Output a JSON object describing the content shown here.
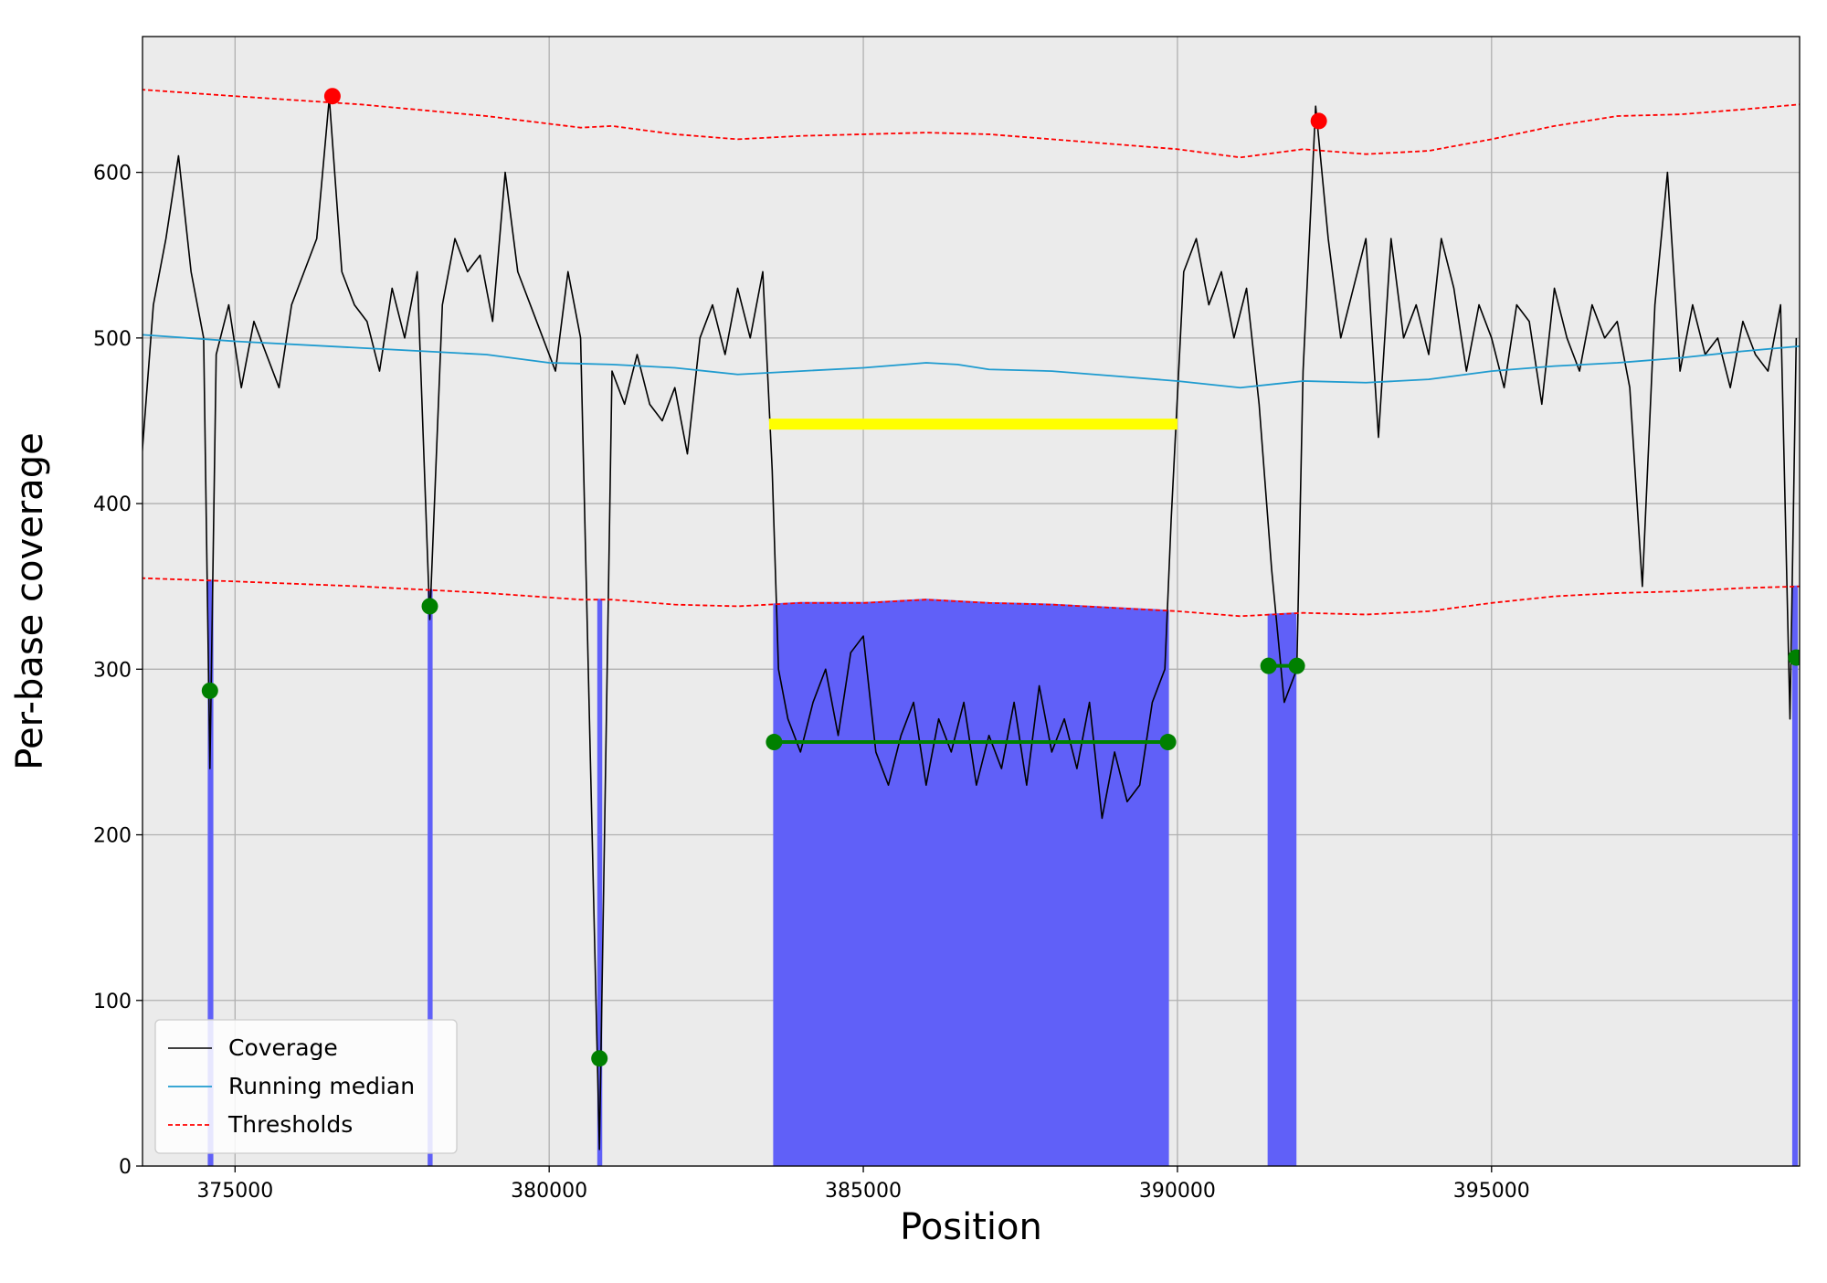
{
  "chart_data": {
    "type": "line",
    "xlabel": "Position",
    "ylabel": "Per-base coverage",
    "xlim": [
      373527,
      399903
    ],
    "ylim": [
      0,
      682
    ],
    "xticks": [
      375000,
      380000,
      385000,
      390000,
      395000
    ],
    "yticks": [
      0,
      100,
      200,
      300,
      400,
      500,
      600
    ],
    "grid": true,
    "legend": "lower left",
    "regions_color": "#6060f8",
    "regions": [
      [
        374580,
        374640
      ],
      [
        378080,
        378130
      ],
      [
        380780,
        380830
      ],
      [
        383580,
        389850
      ],
      [
        391450,
        391880
      ],
      [
        399800,
        399860
      ]
    ],
    "series": [
      {
        "name": "Coverage",
        "color": "#000000",
        "style": "line",
        "width": 1.6,
        "x": [
          373500,
          373700,
          373900,
          374100,
          374300,
          374500,
          374600,
          374700,
          374900,
          375100,
          375300,
          375500,
          375700,
          375900,
          376100,
          376300,
          376500,
          376700,
          376900,
          377100,
          377300,
          377500,
          377700,
          377900,
          378100,
          378300,
          378500,
          378700,
          378900,
          379100,
          379300,
          379500,
          379700,
          379900,
          380100,
          380300,
          380500,
          380800,
          381000,
          381200,
          381400,
          381600,
          381800,
          382000,
          382200,
          382400,
          382600,
          382800,
          383000,
          383200,
          383400,
          383550,
          383650,
          383800,
          384000,
          384200,
          384400,
          384600,
          384800,
          385000,
          385200,
          385400,
          385600,
          385800,
          386000,
          386200,
          386400,
          386600,
          386800,
          387000,
          387200,
          387400,
          387600,
          387800,
          388000,
          388200,
          388400,
          388600,
          388800,
          389000,
          389200,
          389400,
          389600,
          389800,
          389900,
          390100,
          390300,
          390500,
          390700,
          390900,
          391100,
          391300,
          391500,
          391700,
          391900,
          392000,
          392200,
          392400,
          392600,
          392800,
          393000,
          393200,
          393400,
          393600,
          393800,
          394000,
          394200,
          394400,
          394600,
          394800,
          395000,
          395200,
          395400,
          395600,
          395800,
          396000,
          396200,
          396400,
          396600,
          396800,
          397000,
          397200,
          397400,
          397600,
          397800,
          398000,
          398200,
          398400,
          398600,
          398800,
          399000,
          399200,
          399400,
          399600,
          399750,
          399850
        ],
        "values": [
          420,
          520,
          560,
          610,
          540,
          500,
          240,
          490,
          520,
          470,
          510,
          490,
          470,
          520,
          540,
          560,
          645,
          540,
          520,
          510,
          480,
          530,
          500,
          540,
          330,
          520,
          560,
          540,
          550,
          510,
          600,
          540,
          520,
          500,
          480,
          540,
          500,
          10,
          480,
          460,
          490,
          460,
          450,
          470,
          430,
          500,
          520,
          490,
          530,
          500,
          540,
          420,
          300,
          270,
          250,
          280,
          300,
          260,
          310,
          320,
          250,
          230,
          260,
          280,
          230,
          270,
          250,
          280,
          230,
          260,
          240,
          280,
          230,
          290,
          250,
          270,
          240,
          280,
          210,
          250,
          220,
          230,
          280,
          300,
          390,
          540,
          560,
          520,
          540,
          500,
          530,
          460,
          360,
          280,
          300,
          480,
          640,
          560,
          500,
          530,
          560,
          440,
          560,
          500,
          520,
          490,
          560,
          530,
          480,
          520,
          500,
          470,
          520,
          510,
          460,
          530,
          500,
          480,
          520,
          500,
          510,
          470,
          350,
          520,
          600,
          480,
          520,
          490,
          500,
          470,
          510,
          490,
          480,
          520,
          270,
          500
        ]
      },
      {
        "name": "Running median",
        "color": "#1f9bcf",
        "style": "line",
        "width": 1.8,
        "x": [
          373500,
          375000,
          377000,
          379000,
          380000,
          381000,
          382000,
          383000,
          384000,
          385000,
          386000,
          386500,
          387000,
          388000,
          389000,
          390000,
          391000,
          392000,
          393000,
          394000,
          395000,
          396000,
          397000,
          398000,
          399000,
          399900
        ],
        "values": [
          502,
          498,
          494,
          490,
          485,
          484,
          482,
          478,
          480,
          482,
          485,
          484,
          481,
          480,
          477,
          474,
          470,
          474,
          473,
          475,
          480,
          483,
          485,
          488,
          492,
          495
        ]
      },
      {
        "name": "Thresholds",
        "color": "#ff0000",
        "style": "dashed",
        "width": 1.8,
        "x": [
          373500,
          375000,
          377000,
          379000,
          380500,
          381000,
          382000,
          383000,
          384000,
          385000,
          386000,
          387000,
          388000,
          389000,
          390000,
          391000,
          392000,
          393000,
          394000,
          395000,
          396000,
          397000,
          398000,
          399000,
          399900
        ],
        "values": [
          650,
          646,
          641,
          634,
          627,
          628,
          623,
          620,
          622,
          623,
          624,
          623,
          620,
          617,
          614,
          609,
          614,
          611,
          613,
          620,
          628,
          634,
          635,
          638,
          641
        ]
      },
      {
        "color": "#ff0000",
        "style": "dashed",
        "width": 1.8,
        "fill_regions": true,
        "x": [
          373500,
          375000,
          377000,
          379000,
          380500,
          381000,
          382000,
          383000,
          384000,
          385000,
          386000,
          387000,
          388000,
          389000,
          390000,
          391000,
          392000,
          393000,
          394000,
          395000,
          396000,
          397000,
          398000,
          399000,
          399900
        ],
        "values": [
          355,
          353,
          350,
          346,
          342,
          342,
          339,
          338,
          340,
          340,
          342,
          340,
          339,
          337,
          335,
          332,
          334,
          333,
          335,
          340,
          344,
          346,
          347,
          349,
          350
        ]
      },
      {
        "color": "#ffff00",
        "style": "line",
        "width": 12,
        "x": [
          383500,
          390000
        ],
        "values": [
          448,
          448
        ]
      },
      {
        "color": "#008000",
        "style": "line-markers",
        "width": 4,
        "x": [
          374600,
          376000,
          378100,
          379500,
          380800,
          382000,
          383580,
          389850,
          390500,
          391450,
          391900,
          395000,
          399850
        ],
        "values": [
          287,
          null,
          338,
          null,
          65,
          null,
          256,
          256,
          null,
          302,
          302,
          null,
          307
        ]
      },
      {
        "color": "#ff0000",
        "style": "markers",
        "x": [
          376550,
          392250
        ],
        "values": [
          646,
          631
        ]
      }
    ]
  }
}
